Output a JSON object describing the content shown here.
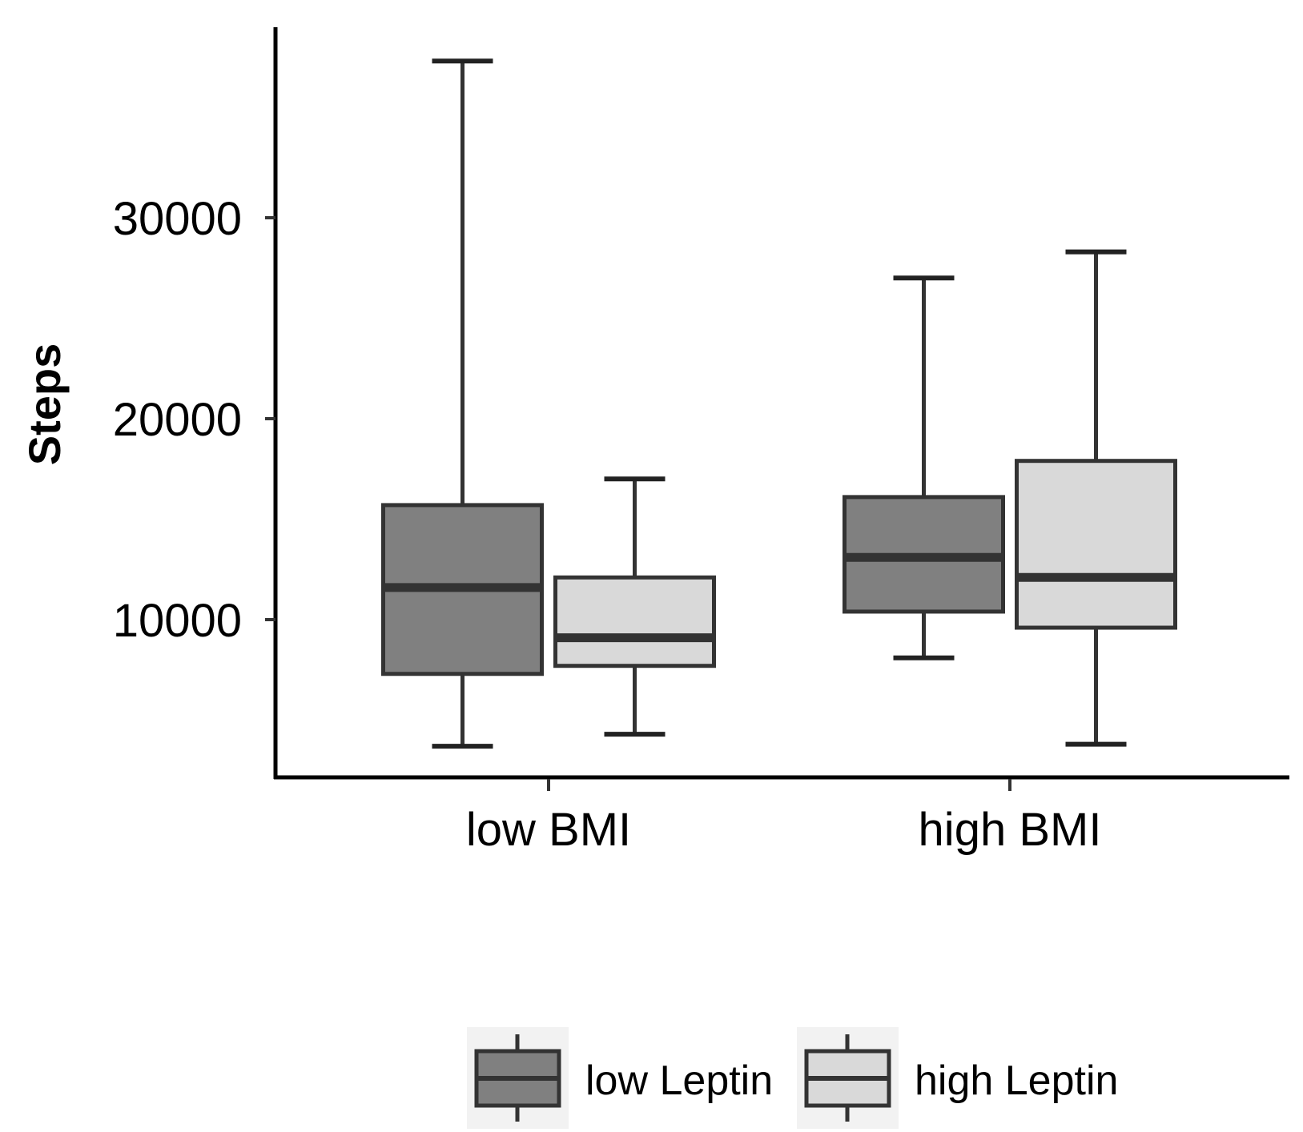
{
  "chart_data": {
    "type": "boxplot",
    "title": "",
    "xlabel": "",
    "ylabel": "Steps",
    "categories": [
      "low BMI",
      "high BMI"
    ],
    "yticks": [
      10000,
      20000,
      30000
    ],
    "ylim": [
      2200,
      40500
    ],
    "series": [
      {
        "name": "low Leptin",
        "color": "#808080",
        "boxes": [
          {
            "category": "low BMI",
            "whisker_low": 3700,
            "q1": 7300,
            "median": 11600,
            "q3": 15700,
            "whisker_high": 37800
          },
          {
            "category": "high BMI",
            "whisker_low": 8100,
            "q1": 10400,
            "median": 13100,
            "q3": 16100,
            "whisker_high": 27000
          }
        ]
      },
      {
        "name": "high Leptin",
        "color": "#d9d9d9",
        "boxes": [
          {
            "category": "low BMI",
            "whisker_low": 4300,
            "q1": 7700,
            "median": 9100,
            "q3": 12100,
            "whisker_high": 17000
          },
          {
            "category": "high BMI",
            "whisker_low": 3800,
            "q1": 9600,
            "median": 12100,
            "q3": 17900,
            "whisker_high": 28300
          }
        ]
      }
    ],
    "legend": {
      "position": "bottom",
      "entries": [
        "low Leptin",
        "high Leptin"
      ]
    }
  }
}
